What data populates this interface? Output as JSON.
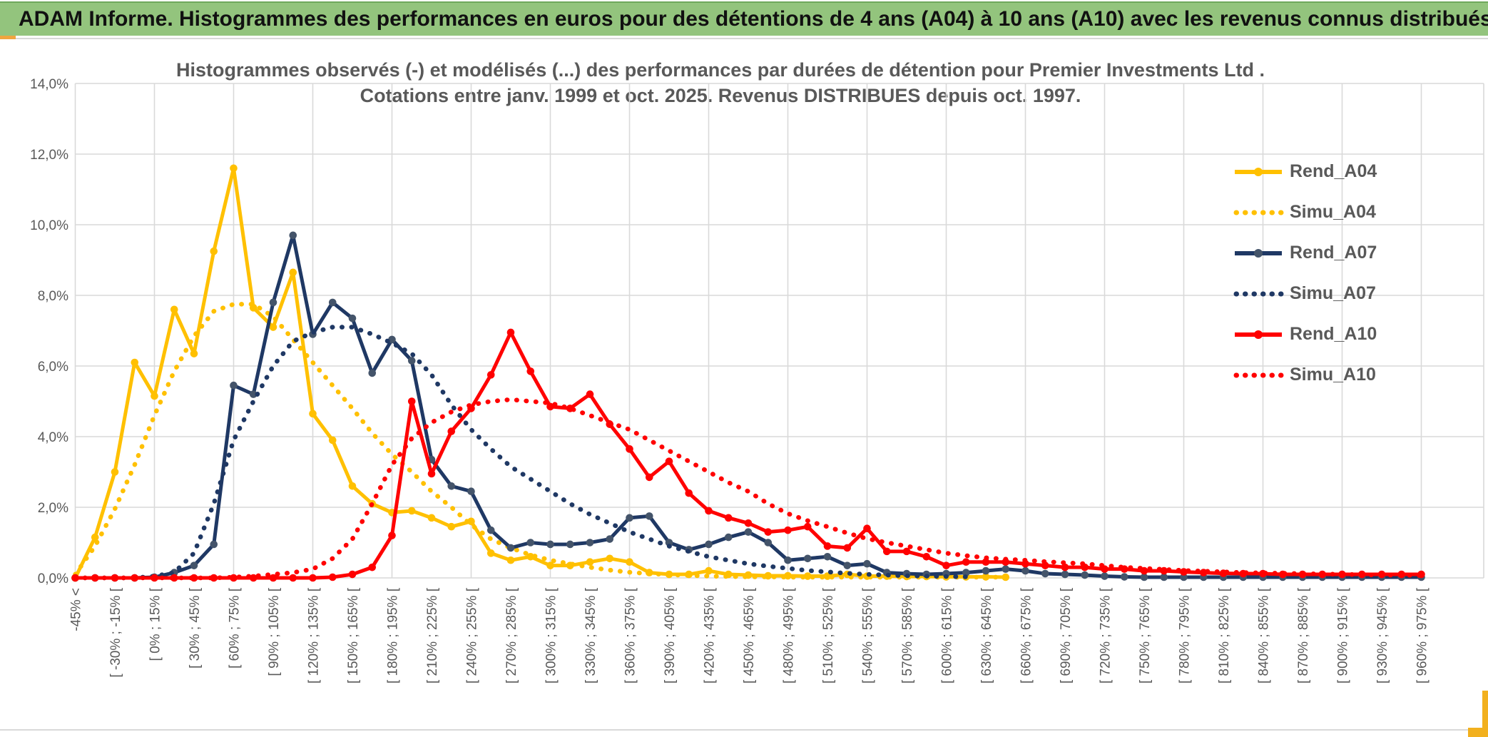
{
  "header": {
    "title": "ADAM Informe. Histogrammes des performances en euros pour des détentions de 4 ans (A04) à 10 ans (A10) avec les revenus connus distribués"
  },
  "chart": {
    "title_line1": "Histogrammes observés (-) et modélisés (...) des performances par durées de détention pour Premier Investments Ltd .",
    "title_line2": "Cotations entre janv. 1999 et oct. 2025. Revenus DISTRIBUES depuis oct. 1997."
  },
  "colors": {
    "header_green": "#93C47D",
    "accent_orange": "#EFA53F",
    "corner_orange": "#F2B01E",
    "grid": "#D9D9D9",
    "axis_text": "#595959",
    "title_text": "#595959",
    "series_yellow": "#FFC000",
    "series_navy": "#1F3864",
    "series_red": "#FF0000"
  },
  "legend": {
    "items": [
      {
        "label": "Rend_A04"
      },
      {
        "label": "Simu_A04"
      },
      {
        "label": "Rend_A07"
      },
      {
        "label": "Simu_A07"
      },
      {
        "label": "Rend_A10"
      },
      {
        "label": "Simu_A10"
      }
    ]
  },
  "chart_data": {
    "type": "line",
    "title": "Histogrammes observés (-) et modélisés (...) des performances par durées de détention pour Premier Investments Ltd .",
    "subtitle": "Cotations entre janv. 1999 et oct. 2025. Revenus DISTRIBUES depuis oct. 1997.",
    "xlabel": "",
    "ylabel": "",
    "ylim": [
      0,
      14
    ],
    "y_tick_step_pct": 2,
    "y_tick_labels": [
      "0,0%",
      "2,0%",
      "4,0%",
      "6,0%",
      "8,0%",
      "10,0%",
      "12,0%",
      "14,0%"
    ],
    "grid": true,
    "legend_position": "right",
    "n_bins": 69,
    "bin_width_pct": 15,
    "categories": [
      "-45% <",
      "",
      "[ -30% ; -15% [",
      "",
      "[ 0% ; 15% [",
      "",
      "[ 30% ; 45% [",
      "",
      "[ 60% ; 75% [",
      "",
      "[ 90% ; 105% [",
      "",
      "[ 120% ; 135% [",
      "",
      "[ 150% ; 165% [",
      "",
      "[ 180% ; 195% [",
      "",
      "[ 210% ; 225% [",
      "",
      "[ 240% ; 255% [",
      "",
      "[ 270% ; 285% [",
      "",
      "[ 300% ; 315% [",
      "",
      "[ 330% ; 345% [",
      "",
      "[ 360% ; 375% [",
      "",
      "[ 390% ; 405% [",
      "",
      "[ 420% ; 435% [",
      "",
      "[ 450% ; 465% [",
      "",
      "[ 480% ; 495% [",
      "",
      "[ 510% ; 525% [",
      "",
      "[ 540% ; 555% [",
      "",
      "[ 570% ; 585% [",
      "",
      "[ 600% ; 615% [",
      "",
      "[ 630% ; 645% [",
      "",
      "[ 660% ; 675% [",
      "",
      "[ 690% ; 705% [",
      "",
      "[ 720% ; 735% [",
      "",
      "[ 750% ; 765% [",
      "",
      "[ 780% ; 795% [",
      "",
      "[ 810% ; 825% [",
      "",
      "[ 840% ; 855% [",
      "",
      "[ 870% ; 885% [",
      "",
      "[ 900% ; 915% [",
      "",
      "[ 930% ; 945% [",
      "",
      "[ 960% ; 975% ["
    ],
    "series": [
      {
        "name": "Rend_A04",
        "style": "solid",
        "marker": true,
        "color": "#FFC000",
        "marker_color": "#FFC000",
        "values": [
          0,
          1.15,
          3,
          6.1,
          5.15,
          7.6,
          6.35,
          9.25,
          11.6,
          7.65,
          7.1,
          8.65,
          4.65,
          3.9,
          2.6,
          2.1,
          1.85,
          1.9,
          1.7,
          1.45,
          1.6,
          0.7,
          0.5,
          0.6,
          0.35,
          0.35,
          0.45,
          0.55,
          0.45,
          0.15,
          0.1,
          0.1,
          0.2,
          0.1,
          0.08,
          0.06,
          0.06,
          0.05,
          0.05,
          0.1,
          0.05,
          0.05,
          0.04,
          0.04,
          0.03,
          0.03,
          0.03,
          0.02,
          null,
          null,
          null,
          null,
          null,
          null,
          null,
          null,
          null,
          null,
          null,
          null,
          null,
          null,
          null,
          null,
          null,
          null,
          null,
          null,
          null
        ]
      },
      {
        "name": "Simu_A04",
        "style": "dotted",
        "marker": false,
        "color": "#FFC000",
        "marker_color": "#FFC000",
        "values": [
          0.1,
          0.9,
          1.95,
          3.2,
          4.6,
          5.85,
          6.85,
          7.55,
          7.75,
          7.75,
          7.4,
          6.75,
          6.1,
          5.45,
          4.8,
          4.1,
          3.5,
          3,
          2.45,
          2,
          1.5,
          1.1,
          0.85,
          0.65,
          0.5,
          0.4,
          0.3,
          0.22,
          0.16,
          0.12,
          0.09,
          0.07,
          0.05,
          0.04,
          0.03,
          0.03,
          0.02,
          0.02,
          0.02,
          0.02,
          0.02,
          0.02,
          0.02,
          0.02,
          0.02,
          0.02,
          0.02,
          0.02,
          null,
          null,
          null,
          null,
          null,
          null,
          null,
          null,
          null,
          null,
          null,
          null,
          null,
          null,
          null,
          null,
          null,
          null,
          null,
          null,
          null
        ]
      },
      {
        "name": "Rend_A07",
        "style": "solid",
        "marker": true,
        "color": "#1F3864",
        "marker_color": "#44546A",
        "values": [
          0,
          0,
          0,
          0,
          0.02,
          0.15,
          0.35,
          0.95,
          5.45,
          5.2,
          7.8,
          9.7,
          6.9,
          7.8,
          7.35,
          5.8,
          6.75,
          6.15,
          3.35,
          2.6,
          2.45,
          1.35,
          0.85,
          1,
          0.95,
          0.95,
          1,
          1.1,
          1.7,
          1.75,
          1,
          0.8,
          0.95,
          1.15,
          1.3,
          1,
          0.5,
          0.55,
          0.6,
          0.35,
          0.4,
          0.15,
          0.12,
          0.1,
          0.12,
          0.15,
          0.2,
          0.25,
          0.2,
          0.12,
          0.1,
          0.08,
          0.05,
          0.03,
          0.02,
          0.02,
          0.02,
          0.02,
          0.02,
          0.02,
          0.02,
          0.02,
          0.02,
          0.02,
          0.02,
          0.02,
          0.02,
          0.02,
          0.02
        ]
      },
      {
        "name": "Simu_A07",
        "style": "dotted",
        "marker": false,
        "color": "#1F3864",
        "marker_color": "#1F3864",
        "values": [
          0,
          0,
          0,
          0,
          0.05,
          0.15,
          0.7,
          2.1,
          3.9,
          5,
          6,
          6.7,
          6.95,
          7.1,
          7.1,
          6.9,
          6.65,
          6.35,
          5.75,
          4.9,
          4.2,
          3.65,
          3.15,
          2.8,
          2.45,
          2.1,
          1.8,
          1.55,
          1.3,
          1.1,
          0.9,
          0.75,
          0.6,
          0.5,
          0.4,
          0.33,
          0.27,
          0.21,
          0.17,
          0.13,
          0.1,
          0.08,
          0.06,
          0.05,
          0.04,
          0.03,
          null,
          null,
          null,
          null,
          null,
          null,
          null,
          null,
          null,
          null,
          null,
          null,
          null,
          null,
          null,
          null,
          null,
          null,
          null,
          null,
          null,
          null,
          null
        ]
      },
      {
        "name": "Rend_A10",
        "style": "solid",
        "marker": true,
        "color": "#FF0000",
        "marker_color": "#FF0000",
        "values": [
          0,
          0,
          0,
          0,
          0,
          0,
          0,
          0,
          0,
          0,
          0,
          0,
          0,
          0.02,
          0.1,
          0.3,
          1.2,
          5,
          2.95,
          4.15,
          4.8,
          5.75,
          6.95,
          5.85,
          4.85,
          4.8,
          5.2,
          4.35,
          3.65,
          2.85,
          3.3,
          2.4,
          1.9,
          1.7,
          1.55,
          1.3,
          1.35,
          1.45,
          0.9,
          0.85,
          1.4,
          0.75,
          0.75,
          0.6,
          0.35,
          0.45,
          0.45,
          0.45,
          0.4,
          0.35,
          0.3,
          0.3,
          0.25,
          0.25,
          0.2,
          0.2,
          0.17,
          0.15,
          0.13,
          0.12,
          0.12,
          0.1,
          0.1,
          0.1,
          0.1,
          0.1,
          0.1,
          0.1,
          0.1
        ]
      },
      {
        "name": "Simu_A10",
        "style": "dotted",
        "marker": false,
        "color": "#FF0000",
        "marker_color": "#FF0000",
        "values": [
          0,
          0,
          0,
          0,
          0,
          0,
          0,
          0,
          0.02,
          0.05,
          0.1,
          0.15,
          0.25,
          0.55,
          1.1,
          2.1,
          3.2,
          3.95,
          4.4,
          4.7,
          4.9,
          5,
          5.05,
          5,
          4.95,
          4.8,
          4.6,
          4.4,
          4.2,
          3.9,
          3.6,
          3.3,
          3,
          2.7,
          2.45,
          2.1,
          1.82,
          1.62,
          1.45,
          1.27,
          1.11,
          1,
          0.9,
          0.8,
          0.7,
          0.63,
          0.57,
          0.53,
          0.5,
          0.46,
          0.43,
          0.4,
          0.35,
          0.3,
          0.27,
          0.24,
          0.21,
          0.19,
          0.17,
          0.15,
          0.14,
          0.13,
          0.12,
          0.11,
          0.1,
          0.09,
          0.08,
          0.08,
          0.07
        ]
      }
    ]
  }
}
